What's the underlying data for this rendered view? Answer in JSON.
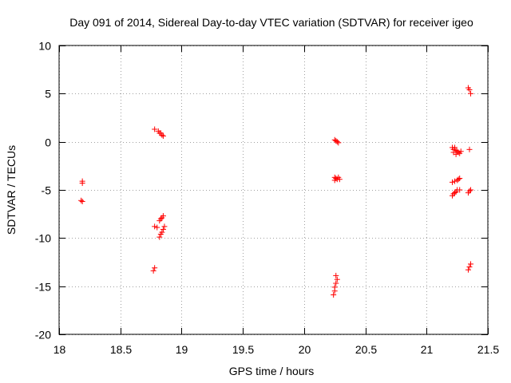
{
  "chart_data": {
    "type": "scatter",
    "title": "Day 091 of 2014, Sidereal Day-to-day VTEC variation (SDTVAR) for receiver igeo",
    "xlabel": "GPS time / hours",
    "ylabel": "SDTVAR / TECUs",
    "xlim": [
      18,
      21.5
    ],
    "ylim": [
      -20,
      10
    ],
    "xticks": [
      18,
      18.5,
      19,
      19.5,
      20,
      20.5,
      21,
      21.5
    ],
    "yticks": [
      -20,
      -15,
      -10,
      -5,
      0,
      5,
      10
    ],
    "xtick_labels": [
      "18",
      "18.5",
      "19",
      "19.5",
      "20",
      "20.5",
      "21",
      "21.5"
    ],
    "ytick_labels": [
      "-20",
      "-15",
      "-10",
      "-5",
      "0",
      "5",
      "10"
    ],
    "grid": true,
    "marker": "+",
    "color": "#ff0000",
    "series": [
      {
        "name": "SDTVAR",
        "points": [
          [
            18.19,
            -4.1
          ],
          [
            18.19,
            -4.3
          ],
          [
            18.18,
            -6.1
          ],
          [
            18.19,
            -6.2
          ],
          [
            18.78,
            1.3
          ],
          [
            18.81,
            1.1
          ],
          [
            18.82,
            0.9
          ],
          [
            18.83,
            0.9
          ],
          [
            18.84,
            0.7
          ],
          [
            18.85,
            0.6
          ],
          [
            18.78,
            -8.8
          ],
          [
            18.8,
            -8.9
          ],
          [
            18.82,
            -8.2
          ],
          [
            18.83,
            -8.0
          ],
          [
            18.84,
            -7.9
          ],
          [
            18.85,
            -7.7
          ],
          [
            18.86,
            -8.8
          ],
          [
            18.85,
            -9.1
          ],
          [
            18.84,
            -9.4
          ],
          [
            18.83,
            -9.6
          ],
          [
            18.82,
            -9.9
          ],
          [
            18.78,
            -13.1
          ],
          [
            18.77,
            -13.4
          ],
          [
            20.25,
            0.2
          ],
          [
            20.26,
            0.1
          ],
          [
            20.27,
            0.0
          ],
          [
            20.28,
            -0.1
          ],
          [
            20.25,
            -3.7
          ],
          [
            20.26,
            -3.8
          ],
          [
            20.27,
            -3.9
          ],
          [
            20.28,
            -3.7
          ],
          [
            20.29,
            -3.9
          ],
          [
            20.25,
            -4.0
          ],
          [
            20.26,
            -13.9
          ],
          [
            20.27,
            -14.3
          ],
          [
            20.26,
            -14.7
          ],
          [
            20.25,
            -15.1
          ],
          [
            20.25,
            -15.5
          ],
          [
            20.24,
            -15.9
          ],
          [
            21.21,
            -0.6
          ],
          [
            21.22,
            -0.8
          ],
          [
            21.23,
            -0.6
          ],
          [
            21.24,
            -0.9
          ],
          [
            21.25,
            -1.0
          ],
          [
            21.26,
            -1.1
          ],
          [
            21.27,
            -1.2
          ],
          [
            21.28,
            -1.0
          ],
          [
            21.22,
            -1.1
          ],
          [
            21.24,
            -1.3
          ],
          [
            21.35,
            -0.8
          ],
          [
            21.21,
            -4.2
          ],
          [
            21.23,
            -4.1
          ],
          [
            21.25,
            -4.0
          ],
          [
            21.26,
            -3.9
          ],
          [
            21.27,
            -3.8
          ],
          [
            21.21,
            -5.6
          ],
          [
            21.22,
            -5.4
          ],
          [
            21.23,
            -5.3
          ],
          [
            21.24,
            -5.2
          ],
          [
            21.25,
            -5.0
          ],
          [
            21.27,
            -5.0
          ],
          [
            21.34,
            -5.3
          ],
          [
            21.35,
            -5.1
          ],
          [
            21.36,
            -5.0
          ],
          [
            21.34,
            5.6
          ],
          [
            21.35,
            5.4
          ],
          [
            21.36,
            5.0
          ],
          [
            21.34,
            -13.3
          ],
          [
            21.35,
            -13.0
          ],
          [
            21.36,
            -12.7
          ]
        ]
      }
    ]
  }
}
